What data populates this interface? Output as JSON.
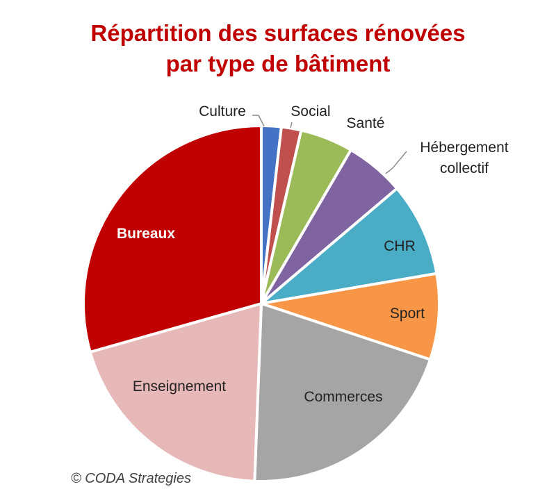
{
  "chart_data": {
    "type": "pie",
    "title_lines": [
      "Répartition des surfaces rénovées",
      "par type de bâtiment"
    ],
    "categories": [
      "Culture",
      "Social",
      "Santé",
      "Hébergement collectif",
      "CHR",
      "Sport",
      "Commerces",
      "Enseignement",
      "Bureaux"
    ],
    "label_lines": [
      [
        "Culture"
      ],
      [
        "Social"
      ],
      [
        "Santé"
      ],
      [
        "Hébergement",
        "collectif"
      ],
      [
        "CHR"
      ],
      [
        "Sport"
      ],
      [
        "Commerces"
      ],
      [
        "Enseignement"
      ],
      [
        "Bureaux"
      ]
    ],
    "values": [
      1.8,
      1.8,
      4.8,
      5.4,
      8.5,
      7.8,
      20.5,
      20.0,
      29.4
    ],
    "colors": [
      "#4472c4",
      "#c0504d",
      "#9bbb59",
      "#8064a2",
      "#4bacc6",
      "#f79646",
      "#a5a5a5",
      "#e6b9b8",
      "#c00000"
    ],
    "label_placement": [
      "outside",
      "outside",
      "outside",
      "outside",
      "inside",
      "inside",
      "inside",
      "inside",
      "inside"
    ],
    "legend": "none"
  },
  "credit": "© CODA Strategies"
}
